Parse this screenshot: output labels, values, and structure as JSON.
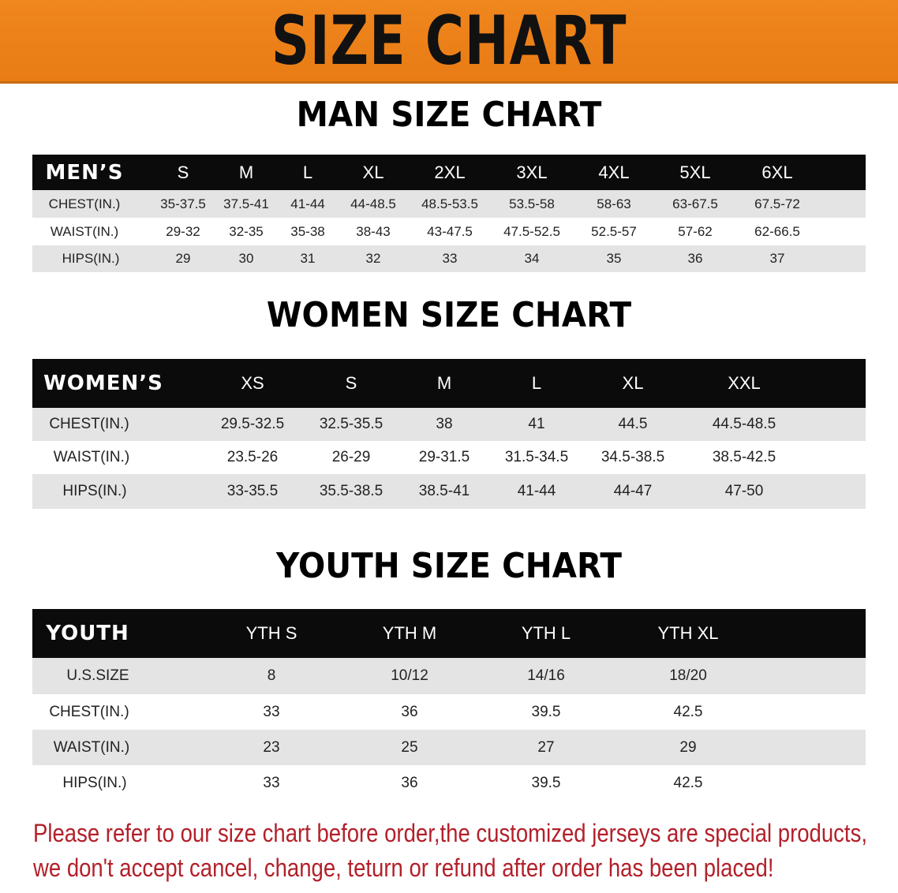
{
  "title": "SIZE CHART",
  "colors": {
    "banner": "#ee8219",
    "header_row": "#0b0b0b",
    "footer_text": "#b3202a"
  },
  "men": {
    "title": "MAN SIZE CHART",
    "header": [
      "MEN’S",
      "S",
      "M",
      "L",
      "XL",
      "2XL",
      "3XL",
      "4XL",
      "5XL",
      "6XL"
    ],
    "rows": [
      [
        "CHEST(IN.)",
        "35-37.5",
        "37.5-41",
        "41-44",
        "44-48.5",
        "48.5-53.5",
        "53.5-58",
        "58-63",
        "63-67.5",
        "67.5-72"
      ],
      [
        "WAIST(IN.)",
        "29-32",
        "32-35",
        "35-38",
        "38-43",
        "43-47.5",
        "47.5-52.5",
        "52.5-57",
        "57-62",
        "62-66.5"
      ],
      [
        "HIPS(IN.)",
        "29",
        "30",
        "31",
        "32",
        "33",
        "34",
        "35",
        "36",
        "37"
      ]
    ]
  },
  "women": {
    "title": "WOMEN SIZE CHART",
    "header": [
      "WOMEN’S",
      "XS",
      "S",
      "M",
      "L",
      "XL",
      "XXL"
    ],
    "rows": [
      [
        "CHEST(IN.)",
        "29.5-32.5",
        "32.5-35.5",
        "38",
        "41",
        "44.5",
        "44.5-48.5"
      ],
      [
        "WAIST(IN.)",
        "23.5-26",
        "26-29",
        "29-31.5",
        "31.5-34.5",
        "34.5-38.5",
        "38.5-42.5"
      ],
      [
        "HIPS(IN.)",
        "33-35.5",
        "35.5-38.5",
        "38.5-41",
        "41-44",
        "44-47",
        "47-50"
      ]
    ]
  },
  "youth": {
    "title": "YOUTH SIZE CHART",
    "header": [
      "YOUTH",
      "YTH S",
      "YTH M",
      "YTH L",
      "YTH XL"
    ],
    "rows": [
      [
        "U.S.SIZE",
        "8",
        "10/12",
        "14/16",
        "18/20"
      ],
      [
        "CHEST(IN.)",
        "33",
        "36",
        "39.5",
        "42.5"
      ],
      [
        "WAIST(IN.)",
        "23",
        "25",
        "27",
        "29"
      ],
      [
        "HIPS(IN.)",
        "33",
        "36",
        "39.5",
        "42.5"
      ]
    ]
  },
  "footer": {
    "line1": "Please refer to our size chart before order,the customized jerseys are special products,",
    "line2": "we don't accept cancel, change, teturn or refund after order has been placed!"
  }
}
